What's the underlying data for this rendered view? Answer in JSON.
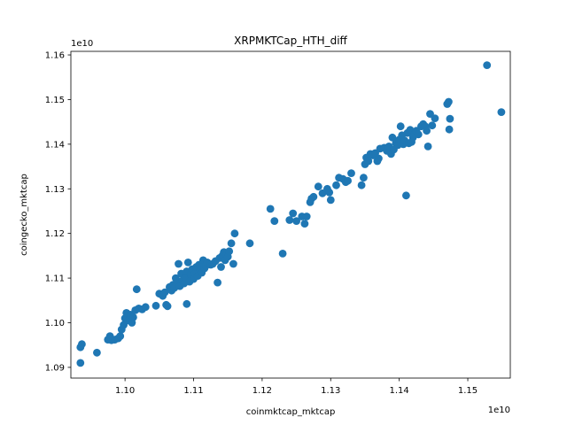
{
  "chart_data": {
    "type": "scatter",
    "title": "XRPMKTCap_HTH_diff",
    "xlabel": "coinmktcap_mktcap",
    "ylabel": "coingecko_mktcap",
    "x_offset_label": "1e10",
    "y_offset_label": "1e10",
    "xlim": [
      1.0921,
      1.1562
    ],
    "ylim": [
      1.0876,
      1.1608
    ],
    "x_ticks": [
      1.1,
      1.11,
      1.12,
      1.13,
      1.14,
      1.15
    ],
    "y_ticks": [
      1.09,
      1.1,
      1.11,
      1.12,
      1.13,
      1.14,
      1.15,
      1.16
    ],
    "x_tick_labels": [
      "1.10",
      "1.11",
      "1.12",
      "1.13",
      "1.14",
      "1.15"
    ],
    "y_tick_labels": [
      "1.09",
      "1.10",
      "1.11",
      "1.12",
      "1.13",
      "1.14",
      "1.15",
      "1.16"
    ],
    "grid": false,
    "color": "#1f77b4",
    "points": [
      [
        1.0935,
        1.091
      ],
      [
        1.0935,
        1.0945
      ],
      [
        1.0937,
        1.0952
      ],
      [
        1.0959,
        1.0933
      ],
      [
        1.0975,
        1.0962
      ],
      [
        1.0978,
        1.097
      ],
      [
        1.098,
        1.0961
      ],
      [
        1.0985,
        1.0962
      ],
      [
        1.099,
        1.0965
      ],
      [
        1.0993,
        1.097
      ],
      [
        1.0995,
        1.0985
      ],
      [
        1.0998,
        1.0995
      ],
      [
        1.1,
        1.101
      ],
      [
        1.1002,
        1.1022
      ],
      [
        1.1005,
        1.1005
      ],
      [
        1.1008,
        1.1018
      ],
      [
        1.101,
        1.1
      ],
      [
        1.1012,
        1.1012
      ],
      [
        1.1015,
        1.1028
      ],
      [
        1.1017,
        1.1075
      ],
      [
        1.102,
        1.1032
      ],
      [
        1.1025,
        1.103
      ],
      [
        1.103,
        1.1035
      ],
      [
        1.1045,
        1.1038
      ],
      [
        1.105,
        1.1065
      ],
      [
        1.1055,
        1.106
      ],
      [
        1.1058,
        1.1068
      ],
      [
        1.106,
        1.104
      ],
      [
        1.1062,
        1.1037
      ],
      [
        1.1065,
        1.108
      ],
      [
        1.1068,
        1.1072
      ],
      [
        1.107,
        1.1085
      ],
      [
        1.1072,
        1.1078
      ],
      [
        1.1074,
        1.11
      ],
      [
        1.1076,
        1.109
      ],
      [
        1.1078,
        1.1132
      ],
      [
        1.108,
        1.1082
      ],
      [
        1.1082,
        1.111
      ],
      [
        1.1084,
        1.1095
      ],
      [
        1.1086,
        1.1088
      ],
      [
        1.1088,
        1.1102
      ],
      [
        1.109,
        1.1115
      ],
      [
        1.109,
        1.1042
      ],
      [
        1.1092,
        1.1135
      ],
      [
        1.1094,
        1.1092
      ],
      [
        1.1096,
        1.1108
      ],
      [
        1.1098,
        1.112
      ],
      [
        1.11,
        1.1098
      ],
      [
        1.1102,
        1.111
      ],
      [
        1.1104,
        1.1125
      ],
      [
        1.1106,
        1.1105
      ],
      [
        1.1108,
        1.113
      ],
      [
        1.111,
        1.1118
      ],
      [
        1.1112,
        1.1112
      ],
      [
        1.1114,
        1.114
      ],
      [
        1.1116,
        1.1122
      ],
      [
        1.1118,
        1.1128
      ],
      [
        1.112,
        1.1135
      ],
      [
        1.1125,
        1.113
      ],
      [
        1.1128,
        1.1132
      ],
      [
        1.1132,
        1.1138
      ],
      [
        1.1135,
        1.109
      ],
      [
        1.1138,
        1.1145
      ],
      [
        1.114,
        1.1125
      ],
      [
        1.1142,
        1.115
      ],
      [
        1.1144,
        1.1158
      ],
      [
        1.1146,
        1.114
      ],
      [
        1.1148,
        1.1152
      ],
      [
        1.115,
        1.1148
      ],
      [
        1.1152,
        1.116
      ],
      [
        1.1155,
        1.1178
      ],
      [
        1.1158,
        1.1132
      ],
      [
        1.116,
        1.12
      ],
      [
        1.1182,
        1.1178
      ],
      [
        1.1212,
        1.1255
      ],
      [
        1.1218,
        1.1228
      ],
      [
        1.123,
        1.1155
      ],
      [
        1.124,
        1.123
      ],
      [
        1.1245,
        1.1245
      ],
      [
        1.125,
        1.1228
      ],
      [
        1.1258,
        1.1238
      ],
      [
        1.1262,
        1.1222
      ],
      [
        1.1265,
        1.1238
      ],
      [
        1.127,
        1.127
      ],
      [
        1.1272,
        1.1278
      ],
      [
        1.1275,
        1.1282
      ],
      [
        1.1282,
        1.1305
      ],
      [
        1.1288,
        1.129
      ],
      [
        1.1295,
        1.13
      ],
      [
        1.1298,
        1.1292
      ],
      [
        1.13,
        1.1275
      ],
      [
        1.1308,
        1.1308
      ],
      [
        1.1312,
        1.1325
      ],
      [
        1.1318,
        1.1322
      ],
      [
        1.1322,
        1.1315
      ],
      [
        1.1325,
        1.1318
      ],
      [
        1.133,
        1.1335
      ],
      [
        1.1345,
        1.1308
      ],
      [
        1.1348,
        1.1325
      ],
      [
        1.135,
        1.1355
      ],
      [
        1.1352,
        1.137
      ],
      [
        1.1355,
        1.1362
      ],
      [
        1.1358,
        1.1378
      ],
      [
        1.1362,
        1.1375
      ],
      [
        1.1365,
        1.138
      ],
      [
        1.1368,
        1.1362
      ],
      [
        1.137,
        1.1368
      ],
      [
        1.1372,
        1.139
      ],
      [
        1.1378,
        1.1392
      ],
      [
        1.1382,
        1.1385
      ],
      [
        1.1385,
        1.1395
      ],
      [
        1.1388,
        1.1378
      ],
      [
        1.139,
        1.1415
      ],
      [
        1.1392,
        1.1388
      ],
      [
        1.1395,
        1.1402
      ],
      [
        1.1398,
        1.1398
      ],
      [
        1.14,
        1.141
      ],
      [
        1.1402,
        1.144
      ],
      [
        1.1404,
        1.142
      ],
      [
        1.1406,
        1.14
      ],
      [
        1.1408,
        1.1408
      ],
      [
        1.141,
        1.1285
      ],
      [
        1.1412,
        1.1425
      ],
      [
        1.1414,
        1.1402
      ],
      [
        1.1416,
        1.1432
      ],
      [
        1.1418,
        1.1405
      ],
      [
        1.142,
        1.1415
      ],
      [
        1.1422,
        1.1422
      ],
      [
        1.1425,
        1.143
      ],
      [
        1.1428,
        1.1422
      ],
      [
        1.1432,
        1.144
      ],
      [
        1.1435,
        1.1445
      ],
      [
        1.1438,
        1.144
      ],
      [
        1.144,
        1.143
      ],
      [
        1.1442,
        1.1395
      ],
      [
        1.1445,
        1.1468
      ],
      [
        1.1448,
        1.1442
      ],
      [
        1.1452,
        1.1458
      ],
      [
        1.147,
        1.149
      ],
      [
        1.1472,
        1.1495
      ],
      [
        1.1473,
        1.1433
      ],
      [
        1.1474,
        1.1457
      ],
      [
        1.1528,
        1.1577
      ],
      [
        1.1549,
        1.1472
      ]
    ]
  }
}
